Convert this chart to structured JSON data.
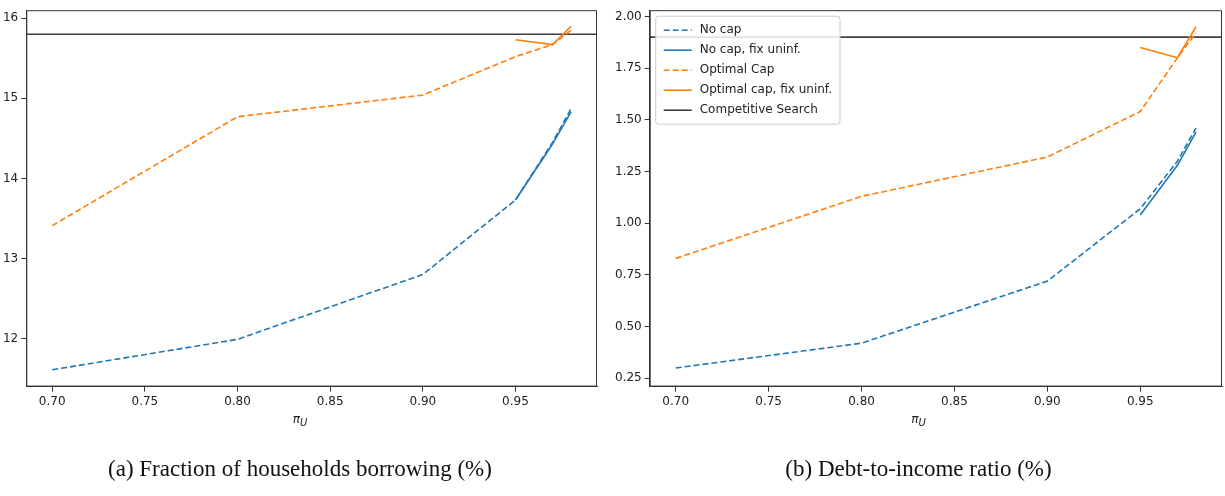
{
  "chart_data": [
    {
      "type": "line",
      "xlabel": "π$_{U}$",
      "annotations": [
        "(a) Fraction of households borrowing (%)"
      ],
      "legend": false,
      "grid": false,
      "marker": "none",
      "xlim": [
        0.686,
        0.994
      ],
      "xticks": [
        {
          "value": 0.7,
          "label": "0.70"
        },
        {
          "value": 0.75,
          "label": "0.75"
        },
        {
          "value": 0.8,
          "label": "0.80"
        },
        {
          "value": 0.85,
          "label": "0.85"
        },
        {
          "value": 0.9,
          "label": "0.90"
        },
        {
          "value": 0.95,
          "label": "0.95"
        }
      ],
      "ylim": [
        11.4,
        16.1
      ],
      "yticks": [
        12,
        13,
        14,
        15,
        16
      ],
      "ref_lines": [
        {
          "axis": "y",
          "value": 15.8,
          "color": "#404040",
          "line_style": "solid"
        }
      ],
      "series": [
        {
          "color": "#1f77b4",
          "line_style": "dashed",
          "x": [
            0.7,
            0.8,
            0.9,
            0.95,
            0.97,
            0.98
          ],
          "values": [
            11.61,
            11.99,
            12.8,
            13.73,
            14.45,
            14.87
          ]
        },
        {
          "color": "#1f77b4",
          "line_style": "solid",
          "x": [
            0.95,
            0.97,
            0.98
          ],
          "values": [
            13.73,
            14.43,
            14.83
          ]
        },
        {
          "color": "#ff7f0e",
          "line_style": "dashed",
          "x": [
            0.7,
            0.8,
            0.9,
            0.95,
            0.97,
            0.98
          ],
          "values": [
            13.41,
            14.77,
            15.04,
            15.52,
            15.67,
            15.85
          ]
        },
        {
          "color": "#ff7f0e",
          "line_style": "solid",
          "x": [
            0.95,
            0.97,
            0.98
          ],
          "values": [
            15.73,
            15.67,
            15.9
          ]
        }
      ]
    },
    {
      "type": "line",
      "xlabel": "π$_{U}$",
      "annotations": [
        "(b) Debt-to-income ratio (%)"
      ],
      "legend": "top left",
      "grid": false,
      "marker": "none",
      "xlim": [
        0.686,
        0.994
      ],
      "xticks": [
        {
          "value": 0.7,
          "label": "0.70"
        },
        {
          "value": 0.75,
          "label": "0.75"
        },
        {
          "value": 0.8,
          "label": "0.80"
        },
        {
          "value": 0.85,
          "label": "0.85"
        },
        {
          "value": 0.9,
          "label": "0.90"
        },
        {
          "value": 0.95,
          "label": "0.95"
        }
      ],
      "ylim": [
        0.21,
        2.03
      ],
      "yticks": [
        {
          "value": 0.25,
          "label": "0.25"
        },
        {
          "value": 0.5,
          "label": "0.50"
        },
        {
          "value": 0.75,
          "label": "0.75"
        },
        {
          "value": 1,
          "label": "1.00"
        },
        {
          "value": 1.25,
          "label": "1.25"
        },
        {
          "value": 1.5,
          "label": "1.50"
        },
        {
          "value": 1.75,
          "label": "1.75"
        },
        {
          "value": 2,
          "label": "2.00"
        }
      ],
      "ref_lines": [
        {
          "axis": "y",
          "value": 1.9,
          "label": "Competitive Search",
          "color": "#404040",
          "line_style": "solid"
        }
      ],
      "series": [
        {
          "name": "No cap",
          "color": "#1f77b4",
          "line_style": "dashed",
          "x": [
            0.7,
            0.8,
            0.9,
            0.95,
            0.97,
            0.98
          ],
          "values": [
            0.3,
            0.42,
            0.72,
            1.07,
            1.3,
            1.46
          ]
        },
        {
          "name": "No cap, fix uninf.",
          "color": "#1f77b4",
          "line_style": "solid",
          "x": [
            0.95,
            0.97,
            0.98
          ],
          "values": [
            1.04,
            1.28,
            1.44
          ]
        },
        {
          "name": "Optimal Cap",
          "color": "#ff7f0e",
          "line_style": "dashed",
          "x": [
            0.7,
            0.8,
            0.9,
            0.95,
            0.97,
            0.98
          ],
          "values": [
            0.83,
            1.13,
            1.32,
            1.54,
            1.8,
            1.92
          ]
        },
        {
          "name": "Optimal cap, fix uninf.",
          "color": "#ff7f0e",
          "line_style": "solid",
          "x": [
            0.95,
            0.97,
            0.98
          ],
          "values": [
            1.85,
            1.8,
            1.95
          ]
        }
      ]
    }
  ]
}
